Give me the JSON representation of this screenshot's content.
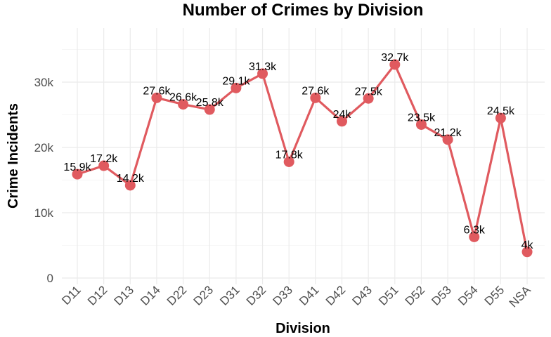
{
  "chart_data": {
    "type": "line",
    "title": "Number of Crimes by Division",
    "xlabel": "Division",
    "ylabel": "Crime Incidents",
    "categories": [
      "D11",
      "D12",
      "D13",
      "D14",
      "D22",
      "D23",
      "D31",
      "D32",
      "D33",
      "D41",
      "D42",
      "D43",
      "D51",
      "D52",
      "D53",
      "D54",
      "D55",
      "NSA"
    ],
    "values": [
      15900,
      17200,
      14200,
      27600,
      26600,
      25800,
      29100,
      31300,
      17800,
      27600,
      24000,
      27500,
      32700,
      23500,
      21200,
      6300,
      24500,
      4000
    ],
    "data_labels": [
      "15.9k",
      "17.2k",
      "14.2k",
      "27.6k",
      "26.6k",
      "25.8k",
      "29.1k",
      "31.3k",
      "17.8k",
      "27.6k",
      "24k",
      "27.5k",
      "32.7k",
      "23.5k",
      "21.2k",
      "6.3k",
      "24.5k",
      "4k"
    ],
    "y_ticks": [
      0,
      10000,
      20000,
      30000
    ],
    "y_tick_labels": [
      "0",
      "10k",
      "20k",
      "30k"
    ],
    "ylim": [
      0,
      35000
    ],
    "grid": true,
    "legend": "none",
    "line_color": "#e05a5f",
    "point_color": "#e05a5f"
  }
}
